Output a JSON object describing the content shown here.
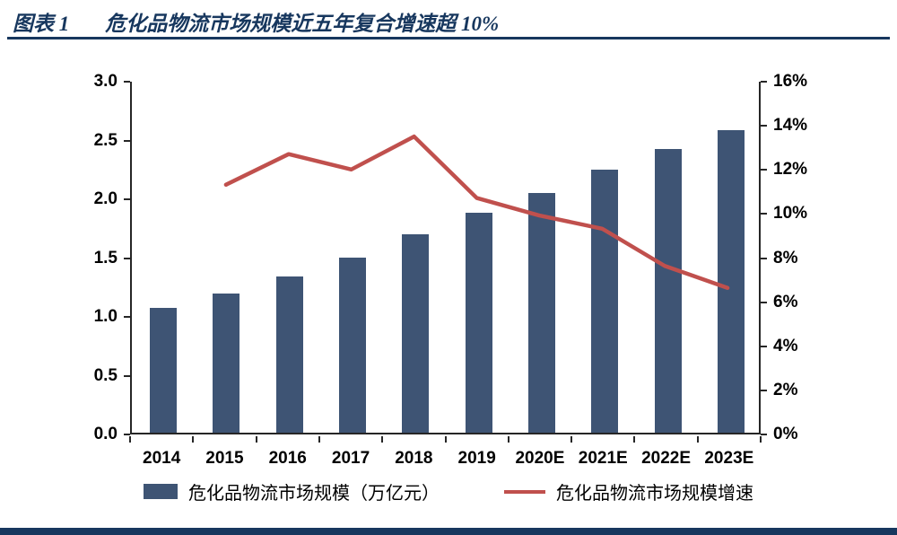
{
  "colors": {
    "accent": "#17375E",
    "bar": "#3E5474",
    "line": "#C0504D",
    "axis": "#262626"
  },
  "header": {
    "title_prefix": "图表 1",
    "title_text": "危化品物流市场规模近五年复合增速超 10%"
  },
  "chart_data": {
    "type": "bar+line",
    "title": "危化品物流市场规模近五年复合增速超 10%",
    "categories": [
      "2014",
      "2015",
      "2016",
      "2017",
      "2018",
      "2019",
      "2020E",
      "2021E",
      "2022E",
      "2023E"
    ],
    "series": [
      {
        "name": "危化品物流市场规模（万亿元）",
        "type": "bar",
        "axis": "left",
        "color": "#3E5474",
        "values": [
          1.06,
          1.18,
          1.33,
          1.49,
          1.69,
          1.87,
          2.04,
          2.24,
          2.41,
          2.57
        ]
      },
      {
        "name": "危化品物流市场规模增速",
        "type": "line",
        "axis": "right",
        "color": "#C0504D",
        "values": [
          null,
          11.3,
          12.7,
          12.0,
          13.5,
          10.7,
          9.9,
          9.3,
          7.6,
          6.6
        ]
      }
    ],
    "left_axis": {
      "min": 0,
      "max": 3,
      "step": 0.5,
      "labels": [
        "0.0",
        "0.5",
        "1.0",
        "1.5",
        "2.0",
        "2.5",
        "3.0"
      ]
    },
    "right_axis": {
      "min": 0,
      "max": 16,
      "step": 2,
      "labels": [
        "0%",
        "2%",
        "4%",
        "6%",
        "8%",
        "10%",
        "12%",
        "14%",
        "16%"
      ]
    },
    "grid": false,
    "legend_position": "bottom"
  }
}
